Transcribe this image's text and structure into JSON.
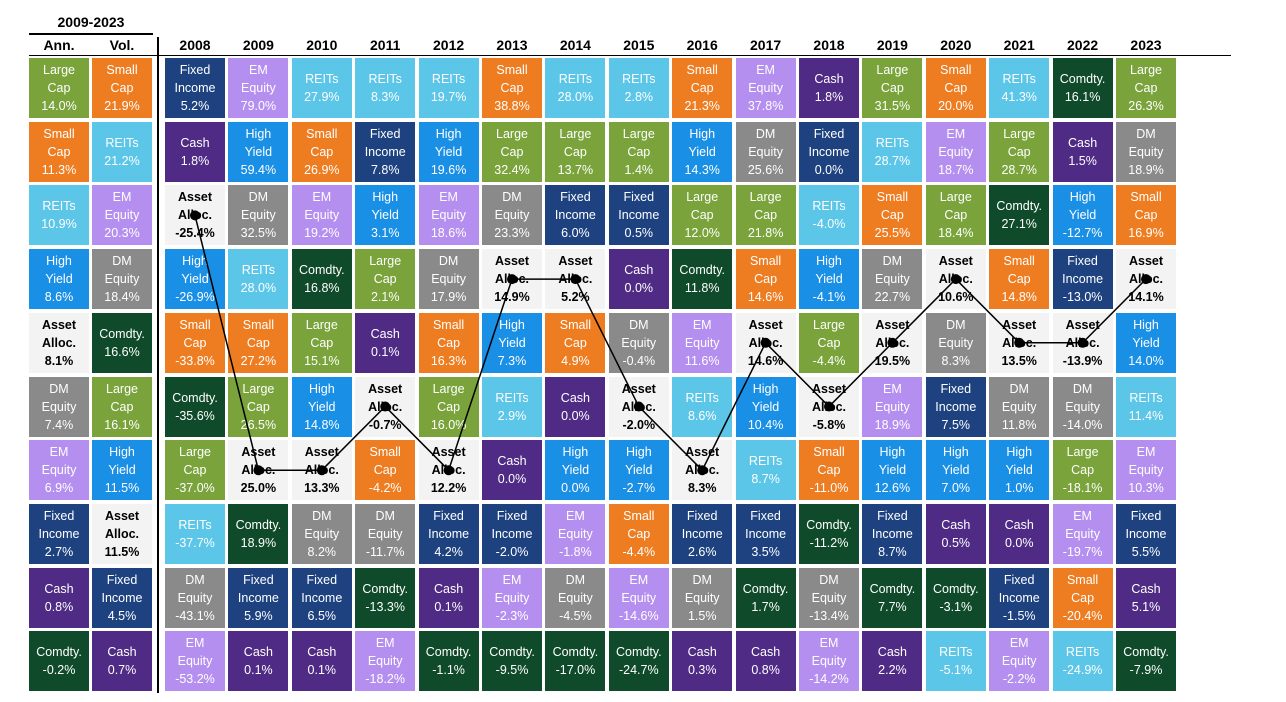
{
  "chart_data": {
    "type": "table",
    "title": "",
    "period_header": "2009-2023",
    "summary_headers": [
      "Ann.",
      "Vol."
    ],
    "years": [
      "2008",
      "2009",
      "2010",
      "2011",
      "2012",
      "2013",
      "2014",
      "2015",
      "2016",
      "2017",
      "2018",
      "2019",
      "2020",
      "2021",
      "2022",
      "2023"
    ],
    "asset_classes": {
      "large_cap": {
        "name": "Large\nCap",
        "color": "#7aa33b"
      },
      "small_cap": {
        "name": "Small\nCap",
        "color": "#ee7d22"
      },
      "reits": {
        "name": "REITs",
        "color": "#5bc6e8"
      },
      "fixed_income": {
        "name": "Fixed\nIncome",
        "color": "#1e4280"
      },
      "em_equity": {
        "name": "EM\nEquity",
        "color": "#b58ff0"
      },
      "cash": {
        "name": "Cash",
        "color": "#4f2b85"
      },
      "high_yield": {
        "name": "High\nYield",
        "color": "#1a8fe6"
      },
      "dm_equity": {
        "name": "DM\nEquity",
        "color": "#8a8a8a"
      },
      "asset_alloc": {
        "name": "Asset\nAlloc.",
        "color": "#f3f3f3"
      },
      "commodity": {
        "name": "Comdty.",
        "color": "#0f4a2a"
      }
    },
    "summary_columns": [
      [
        {
          "asset": "large_cap",
          "value": "14.0%"
        },
        {
          "asset": "small_cap",
          "value": "11.3%"
        },
        {
          "asset": "reits",
          "value": "10.9%"
        },
        {
          "asset": "high_yield",
          "value": "8.6%"
        },
        {
          "asset": "asset_alloc",
          "value": "8.1%"
        },
        {
          "asset": "dm_equity",
          "value": "7.4%"
        },
        {
          "asset": "em_equity",
          "value": "6.9%"
        },
        {
          "asset": "fixed_income",
          "value": "2.7%"
        },
        {
          "asset": "cash",
          "value": "0.8%"
        },
        {
          "asset": "commodity",
          "value": "-0.2%"
        }
      ],
      [
        {
          "asset": "small_cap",
          "value": "21.9%"
        },
        {
          "asset": "reits",
          "value": "21.2%"
        },
        {
          "asset": "em_equity",
          "value": "20.3%"
        },
        {
          "asset": "dm_equity",
          "value": "18.4%"
        },
        {
          "asset": "commodity",
          "value": "16.6%"
        },
        {
          "asset": "large_cap",
          "value": "16.1%"
        },
        {
          "asset": "high_yield",
          "value": "11.5%"
        },
        {
          "asset": "asset_alloc",
          "value": "11.5%"
        },
        {
          "asset": "fixed_income",
          "value": "4.5%"
        },
        {
          "asset": "cash",
          "value": "0.7%"
        }
      ]
    ],
    "year_columns": [
      [
        {
          "asset": "fixed_income",
          "value": "5.2%"
        },
        {
          "asset": "cash",
          "value": "1.8%"
        },
        {
          "asset": "asset_alloc",
          "value": "-25.4%"
        },
        {
          "asset": "high_yield",
          "value": "-26.9%"
        },
        {
          "asset": "small_cap",
          "value": "-33.8%"
        },
        {
          "asset": "commodity",
          "value": "-35.6%"
        },
        {
          "asset": "large_cap",
          "value": "-37.0%"
        },
        {
          "asset": "reits",
          "value": "-37.7%"
        },
        {
          "asset": "dm_equity",
          "value": "-43.1%"
        },
        {
          "asset": "em_equity",
          "value": "-53.2%"
        }
      ],
      [
        {
          "asset": "em_equity",
          "value": "79.0%"
        },
        {
          "asset": "high_yield",
          "value": "59.4%"
        },
        {
          "asset": "dm_equity",
          "value": "32.5%"
        },
        {
          "asset": "reits",
          "value": "28.0%"
        },
        {
          "asset": "small_cap",
          "value": "27.2%"
        },
        {
          "asset": "large_cap",
          "value": "26.5%"
        },
        {
          "asset": "asset_alloc",
          "value": "25.0%"
        },
        {
          "asset": "commodity",
          "value": "18.9%"
        },
        {
          "asset": "fixed_income",
          "value": "5.9%"
        },
        {
          "asset": "cash",
          "value": "0.1%"
        }
      ],
      [
        {
          "asset": "reits",
          "value": "27.9%"
        },
        {
          "asset": "small_cap",
          "value": "26.9%"
        },
        {
          "asset": "em_equity",
          "value": "19.2%"
        },
        {
          "asset": "commodity",
          "value": "16.8%"
        },
        {
          "asset": "large_cap",
          "value": "15.1%"
        },
        {
          "asset": "high_yield",
          "value": "14.8%"
        },
        {
          "asset": "asset_alloc",
          "value": "13.3%"
        },
        {
          "asset": "dm_equity",
          "value": "8.2%"
        },
        {
          "asset": "fixed_income",
          "value": "6.5%"
        },
        {
          "asset": "cash",
          "value": "0.1%"
        }
      ],
      [
        {
          "asset": "reits",
          "value": "8.3%"
        },
        {
          "asset": "fixed_income",
          "value": "7.8%"
        },
        {
          "asset": "high_yield",
          "value": "3.1%"
        },
        {
          "asset": "large_cap",
          "value": "2.1%"
        },
        {
          "asset": "cash",
          "value": "0.1%"
        },
        {
          "asset": "asset_alloc",
          "value": "-0.7%"
        },
        {
          "asset": "small_cap",
          "value": "-4.2%"
        },
        {
          "asset": "dm_equity",
          "value": "-11.7%"
        },
        {
          "asset": "commodity",
          "value": "-13.3%"
        },
        {
          "asset": "em_equity",
          "value": "-18.2%"
        }
      ],
      [
        {
          "asset": "reits",
          "value": "19.7%"
        },
        {
          "asset": "high_yield",
          "value": "19.6%"
        },
        {
          "asset": "em_equity",
          "value": "18.6%"
        },
        {
          "asset": "dm_equity",
          "value": "17.9%"
        },
        {
          "asset": "small_cap",
          "value": "16.3%"
        },
        {
          "asset": "large_cap",
          "value": "16.0%"
        },
        {
          "asset": "asset_alloc",
          "value": "12.2%"
        },
        {
          "asset": "fixed_income",
          "value": "4.2%"
        },
        {
          "asset": "cash",
          "value": "0.1%"
        },
        {
          "asset": "commodity",
          "value": "-1.1%"
        }
      ],
      [
        {
          "asset": "small_cap",
          "value": "38.8%"
        },
        {
          "asset": "large_cap",
          "value": "32.4%"
        },
        {
          "asset": "dm_equity",
          "value": "23.3%"
        },
        {
          "asset": "asset_alloc",
          "value": "14.9%"
        },
        {
          "asset": "high_yield",
          "value": "7.3%"
        },
        {
          "asset": "reits",
          "value": "2.9%"
        },
        {
          "asset": "cash",
          "value": "0.0%"
        },
        {
          "asset": "fixed_income",
          "value": "-2.0%"
        },
        {
          "asset": "em_equity",
          "value": "-2.3%"
        },
        {
          "asset": "commodity",
          "value": "-9.5%"
        }
      ],
      [
        {
          "asset": "reits",
          "value": "28.0%"
        },
        {
          "asset": "large_cap",
          "value": "13.7%"
        },
        {
          "asset": "fixed_income",
          "value": "6.0%"
        },
        {
          "asset": "asset_alloc",
          "value": "5.2%"
        },
        {
          "asset": "small_cap",
          "value": "4.9%"
        },
        {
          "asset": "cash",
          "value": "0.0%"
        },
        {
          "asset": "high_yield",
          "value": "0.0%"
        },
        {
          "asset": "em_equity",
          "value": "-1.8%"
        },
        {
          "asset": "dm_equity",
          "value": "-4.5%"
        },
        {
          "asset": "commodity",
          "value": "-17.0%"
        }
      ],
      [
        {
          "asset": "reits",
          "value": "2.8%"
        },
        {
          "asset": "large_cap",
          "value": "1.4%"
        },
        {
          "asset": "fixed_income",
          "value": "0.5%"
        },
        {
          "asset": "cash",
          "value": "0.0%"
        },
        {
          "asset": "dm_equity",
          "value": "-0.4%"
        },
        {
          "asset": "asset_alloc",
          "value": "-2.0%"
        },
        {
          "asset": "high_yield",
          "value": "-2.7%"
        },
        {
          "asset": "small_cap",
          "value": "-4.4%"
        },
        {
          "asset": "em_equity",
          "value": "-14.6%"
        },
        {
          "asset": "commodity",
          "value": "-24.7%"
        }
      ],
      [
        {
          "asset": "small_cap",
          "value": "21.3%"
        },
        {
          "asset": "high_yield",
          "value": "14.3%"
        },
        {
          "asset": "large_cap",
          "value": "12.0%"
        },
        {
          "asset": "commodity",
          "value": "11.8%"
        },
        {
          "asset": "em_equity",
          "value": "11.6%"
        },
        {
          "asset": "reits",
          "value": "8.6%"
        },
        {
          "asset": "asset_alloc",
          "value": "8.3%"
        },
        {
          "asset": "fixed_income",
          "value": "2.6%"
        },
        {
          "asset": "dm_equity",
          "value": "1.5%"
        },
        {
          "asset": "cash",
          "value": "0.3%"
        }
      ],
      [
        {
          "asset": "em_equity",
          "value": "37.8%"
        },
        {
          "asset": "dm_equity",
          "value": "25.6%"
        },
        {
          "asset": "large_cap",
          "value": "21.8%"
        },
        {
          "asset": "small_cap",
          "value": "14.6%"
        },
        {
          "asset": "asset_alloc",
          "value": "14.6%"
        },
        {
          "asset": "high_yield",
          "value": "10.4%"
        },
        {
          "asset": "reits",
          "value": "8.7%"
        },
        {
          "asset": "fixed_income",
          "value": "3.5%"
        },
        {
          "asset": "commodity",
          "value": "1.7%"
        },
        {
          "asset": "cash",
          "value": "0.8%"
        }
      ],
      [
        {
          "asset": "cash",
          "value": "1.8%"
        },
        {
          "asset": "fixed_income",
          "value": "0.0%"
        },
        {
          "asset": "reits",
          "value": "-4.0%"
        },
        {
          "asset": "high_yield",
          "value": "-4.1%"
        },
        {
          "asset": "large_cap",
          "value": "-4.4%"
        },
        {
          "asset": "asset_alloc",
          "value": "-5.8%"
        },
        {
          "asset": "small_cap",
          "value": "-11.0%"
        },
        {
          "asset": "commodity",
          "value": "-11.2%"
        },
        {
          "asset": "dm_equity",
          "value": "-13.4%"
        },
        {
          "asset": "em_equity",
          "value": "-14.2%"
        }
      ],
      [
        {
          "asset": "large_cap",
          "value": "31.5%"
        },
        {
          "asset": "reits",
          "value": "28.7%"
        },
        {
          "asset": "small_cap",
          "value": "25.5%"
        },
        {
          "asset": "dm_equity",
          "value": "22.7%"
        },
        {
          "asset": "asset_alloc",
          "value": "19.5%"
        },
        {
          "asset": "em_equity",
          "value": "18.9%"
        },
        {
          "asset": "high_yield",
          "value": "12.6%"
        },
        {
          "asset": "fixed_income",
          "value": "8.7%"
        },
        {
          "asset": "commodity",
          "value": "7.7%"
        },
        {
          "asset": "cash",
          "value": "2.2%"
        }
      ],
      [
        {
          "asset": "small_cap",
          "value": "20.0%"
        },
        {
          "asset": "em_equity",
          "value": "18.7%"
        },
        {
          "asset": "large_cap",
          "value": "18.4%"
        },
        {
          "asset": "asset_alloc",
          "value": "10.6%"
        },
        {
          "asset": "dm_equity",
          "value": "8.3%"
        },
        {
          "asset": "fixed_income",
          "value": "7.5%"
        },
        {
          "asset": "high_yield",
          "value": "7.0%"
        },
        {
          "asset": "cash",
          "value": "0.5%"
        },
        {
          "asset": "commodity",
          "value": "-3.1%"
        },
        {
          "asset": "reits",
          "value": "-5.1%"
        }
      ],
      [
        {
          "asset": "reits",
          "value": "41.3%"
        },
        {
          "asset": "large_cap",
          "value": "28.7%"
        },
        {
          "asset": "commodity",
          "value": "27.1%"
        },
        {
          "asset": "small_cap",
          "value": "14.8%"
        },
        {
          "asset": "asset_alloc",
          "value": "13.5%"
        },
        {
          "asset": "dm_equity",
          "value": "11.8%"
        },
        {
          "asset": "high_yield",
          "value": "1.0%"
        },
        {
          "asset": "cash",
          "value": "0.0%"
        },
        {
          "asset": "fixed_income",
          "value": "-1.5%"
        },
        {
          "asset": "em_equity",
          "value": "-2.2%"
        }
      ],
      [
        {
          "asset": "commodity",
          "value": "16.1%"
        },
        {
          "asset": "cash",
          "value": "1.5%"
        },
        {
          "asset": "high_yield",
          "value": "-12.7%"
        },
        {
          "asset": "fixed_income",
          "value": "-13.0%"
        },
        {
          "asset": "asset_alloc",
          "value": "-13.9%"
        },
        {
          "asset": "dm_equity",
          "value": "-14.0%"
        },
        {
          "asset": "large_cap",
          "value": "-18.1%"
        },
        {
          "asset": "em_equity",
          "value": "-19.7%"
        },
        {
          "asset": "small_cap",
          "value": "-20.4%"
        },
        {
          "asset": "reits",
          "value": "-24.9%"
        }
      ],
      [
        {
          "asset": "large_cap",
          "value": "26.3%"
        },
        {
          "asset": "dm_equity",
          "value": "18.9%"
        },
        {
          "asset": "small_cap",
          "value": "16.9%"
        },
        {
          "asset": "asset_alloc",
          "value": "14.1%"
        },
        {
          "asset": "high_yield",
          "value": "14.0%"
        },
        {
          "asset": "reits",
          "value": "11.4%"
        },
        {
          "asset": "em_equity",
          "value": "10.3%"
        },
        {
          "asset": "fixed_income",
          "value": "5.5%"
        },
        {
          "asset": "cash",
          "value": "5.1%"
        },
        {
          "asset": "commodity",
          "value": "-7.9%"
        }
      ]
    ],
    "path_asset": "asset_alloc",
    "path_color": "#000000"
  }
}
